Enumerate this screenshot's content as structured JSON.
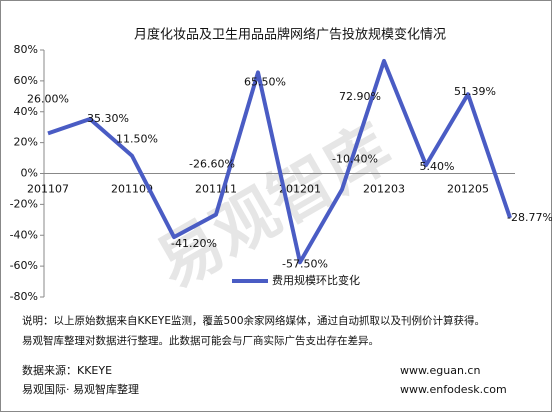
{
  "chart_data": {
    "type": "line",
    "title": "月度化妆品及卫生用品品牌网络广告投放规模变化情况",
    "categories": [
      "201107",
      null,
      "201109",
      null,
      "201111",
      null,
      "201201",
      null,
      "201203",
      null,
      "201205",
      null
    ],
    "series": [
      {
        "name": "费用规模环比变化",
        "color": "#4a5cc4",
        "values": [
          26.0,
          35.3,
          11.5,
          -41.2,
          -26.6,
          65.5,
          -57.5,
          -10.4,
          72.9,
          5.4,
          51.39,
          -28.77
        ],
        "value_labels": [
          "26.00%",
          "35.30%",
          "11.50%",
          "-41.20%",
          "-26.60%",
          "65.50%",
          "-57.50%",
          "-10.40%",
          "72.90%",
          "5.40%",
          "51.39%",
          "-28.77%"
        ]
      }
    ],
    "ylim": [
      -80,
      80
    ],
    "yticks": [
      {
        "value": -80,
        "label": "-80%"
      },
      {
        "value": -60,
        "label": "-60%"
      },
      {
        "value": -40,
        "label": "-40%"
      },
      {
        "value": -20,
        "label": "-20%"
      },
      {
        "value": 0,
        "label": "0%"
      },
      {
        "value": 20,
        "label": "20%"
      },
      {
        "value": 40,
        "label": "40%"
      },
      {
        "value": 60,
        "label": "60%"
      },
      {
        "value": 80,
        "label": "80%"
      }
    ],
    "legend": "lower right",
    "watermark": "易观智库",
    "notes": [
      "说明：以上原始数据来自KKEYE监测，覆盖500余家网络媒体，通过自动抓取以及刊例价计算获得。",
      "易观智库整理对数据进行整理。此数据可能会与厂商实际广告支出存在差异。"
    ],
    "source": "数据来源：KKEYE",
    "org": "易观国际· 易观智库整理",
    "sites": [
      "www.eguan.cn",
      "www.enfodesk.com"
    ]
  }
}
